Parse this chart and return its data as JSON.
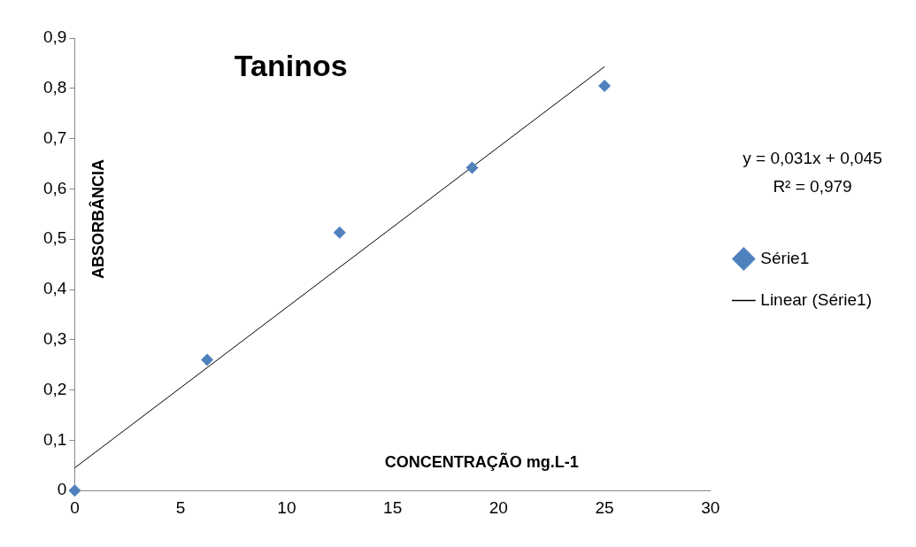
{
  "chart_data": {
    "type": "scatter",
    "title": "Taninos",
    "xlabel": "CONCENTRAÇÃO mg.L-1",
    "ylabel": "ABSORBÂNCIA",
    "xlim": [
      0,
      30
    ],
    "xticks": [
      0,
      5,
      10,
      15,
      20,
      25,
      30
    ],
    "ylim": [
      0,
      0.9
    ],
    "yticks": [
      0,
      {
        "value": 0.1,
        "label": "0,1"
      },
      {
        "value": 0.2,
        "label": "0,2"
      },
      {
        "value": 0.3,
        "label": "0,3"
      },
      {
        "value": 0.4,
        "label": "0,4"
      },
      {
        "value": 0.5,
        "label": "0,5"
      },
      {
        "value": 0.6,
        "label": "0,6"
      },
      {
        "value": 0.7,
        "label": "0,7"
      },
      {
        "value": 0.8,
        "label": "0,8"
      },
      {
        "value": 0.9,
        "label": "0,9"
      }
    ],
    "grid": false,
    "legend": "right",
    "series": [
      {
        "name": "Série1",
        "type": "scatter",
        "marker": "diamond",
        "color": "#4f81bd",
        "x": [
          0,
          6.25,
          12.5,
          18.75,
          25
        ],
        "values": [
          0,
          0.26,
          0.513,
          0.642,
          0.805
        ]
      },
      {
        "name": "Linear (Série1)",
        "type": "line",
        "marker": "none",
        "color": "#000000",
        "x": [
          0,
          25
        ],
        "values": [
          0.045,
          0.843
        ]
      }
    ],
    "annotations": [
      "y = 0,031x + 0,045",
      "R² = 0,979"
    ]
  }
}
